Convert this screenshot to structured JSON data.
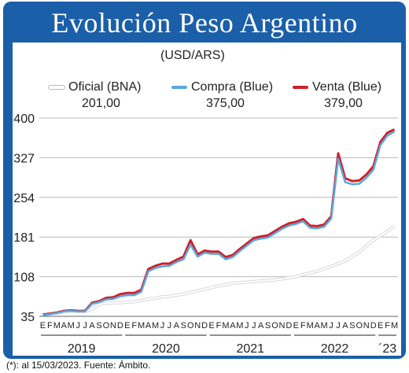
{
  "header": {
    "title": "Evolución Peso Argentino"
  },
  "chart_data": {
    "type": "line",
    "unit_label": "(USD/ARS)",
    "title": "Evolución Peso Argentino",
    "ylim": [
      35,
      400
    ],
    "yticks": [
      "400",
      "327",
      "254",
      "181",
      "108",
      "35"
    ],
    "month_ticks": [
      "E",
      "F",
      "M",
      "A",
      "M",
      "J",
      "J",
      "A",
      "S",
      "O",
      "N",
      "D",
      "E",
      "F",
      "M",
      "A",
      "M",
      "J",
      "J",
      "A",
      "S",
      "O",
      "N",
      "D",
      "E",
      "F",
      "M",
      "A",
      "M",
      "J",
      "J",
      "A",
      "S",
      "O",
      "N",
      "D",
      "E",
      "F",
      "M",
      "A",
      "M",
      "J",
      "J",
      "A",
      "S",
      "O",
      "N",
      "D",
      "E",
      "F",
      "M"
    ],
    "year_labels": [
      "2019",
      "2020",
      "2021",
      "2022",
      "´23"
    ],
    "legend": [
      {
        "name": "Oficial (BNA)",
        "value": "201,00",
        "color": "#ffffff"
      },
      {
        "name": "Compra (Blue)",
        "value": "375,00",
        "color": "#5aa8e0"
      },
      {
        "name": "Venta (Blue)",
        "value": "379,00",
        "color": "#d0202a"
      }
    ],
    "x": [
      "2019-01",
      "2019-02",
      "2019-03",
      "2019-04",
      "2019-05",
      "2019-06",
      "2019-07",
      "2019-08",
      "2019-09",
      "2019-10",
      "2019-11",
      "2019-12",
      "2020-01",
      "2020-02",
      "2020-03",
      "2020-04",
      "2020-05",
      "2020-06",
      "2020-07",
      "2020-08",
      "2020-09",
      "2020-10",
      "2020-11",
      "2020-12",
      "2021-01",
      "2021-02",
      "2021-03",
      "2021-04",
      "2021-05",
      "2021-06",
      "2021-07",
      "2021-08",
      "2021-09",
      "2021-10",
      "2021-11",
      "2021-12",
      "2022-01",
      "2022-02",
      "2022-03",
      "2022-04",
      "2022-05",
      "2022-06",
      "2022-07",
      "2022-08",
      "2022-09",
      "2022-10",
      "2022-11",
      "2022-12",
      "2023-01",
      "2023-02",
      "2023-03"
    ],
    "series": [
      {
        "name": "Oficial (BNA)",
        "color": "#ffffff",
        "values": [
          38,
          39,
          41,
          43,
          45,
          44,
          44,
          48,
          57,
          59,
          60,
          60,
          61,
          62,
          64,
          67,
          68,
          71,
          72,
          74,
          76,
          79,
          82,
          85,
          88,
          91,
          93,
          96,
          97,
          98,
          99,
          100,
          101,
          102,
          104,
          106,
          108,
          112,
          115,
          118,
          122,
          127,
          132,
          137,
          145,
          153,
          165,
          175,
          183,
          192,
          201
        ]
      },
      {
        "name": "Compra (Blue)",
        "color": "#5aa8e0",
        "values": [
          37,
          39,
          41,
          44,
          45,
          44,
          44,
          58,
          61,
          66,
          67,
          72,
          74,
          74,
          80,
          118,
          124,
          127,
          128,
          135,
          140,
          167,
          145,
          152,
          150,
          150,
          140,
          144,
          155,
          165,
          175,
          178,
          180,
          188,
          196,
          202,
          205,
          210,
          198,
          197,
          200,
          215,
          325,
          282,
          278,
          279,
          290,
          305,
          350,
          368,
          375
        ]
      },
      {
        "name": "Venta (Blue)",
        "color": "#d0202a",
        "values": [
          38,
          40,
          42,
          45,
          46,
          45,
          45,
          60,
          63,
          69,
          70,
          76,
          78,
          78,
          84,
          122,
          128,
          132,
          132,
          139,
          145,
          175,
          149,
          156,
          154,
          154,
          144,
          148,
          159,
          169,
          179,
          182,
          184,
          192,
          200,
          206,
          209,
          214,
          202,
          201,
          204,
          219,
          335,
          289,
          284,
          285,
          296,
          311,
          356,
          373,
          379
        ]
      }
    ]
  },
  "footnote": "(*): al  15/03/2023. Fuente: Ámbito."
}
